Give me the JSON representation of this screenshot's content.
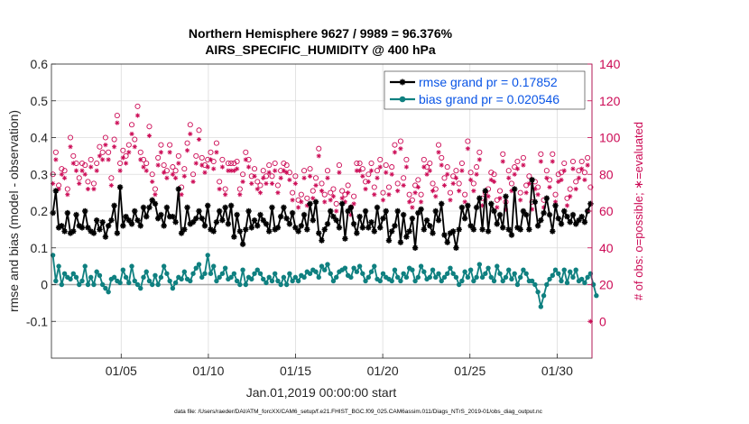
{
  "chart_data": {
    "type": "line",
    "title": [
      "Northern Hemisphere 9627 / 9989 = 96.376%",
      "AIRS_SPECIFIC_HUMIDITY @ 400 hPa"
    ],
    "xlabel": "Jan.01,2019 00:00:00 start",
    "ylabel_left": "rmse and bias (model - observation)",
    "ylabel_right": "# of obs: o=possible; ∗=evaluated",
    "x_ticks": [
      "01/05",
      "01/10",
      "01/15",
      "01/20",
      "01/25",
      "01/30"
    ],
    "x_tick_days": [
      5,
      10,
      15,
      20,
      25,
      30
    ],
    "xlim_days": [
      1,
      32
    ],
    "ylim_left": [
      -0.2,
      0.6
    ],
    "left_ticks": [
      "-0.1",
      "0",
      "0.1",
      "0.2",
      "0.3",
      "0.4",
      "0.5",
      "0.6"
    ],
    "left_tick_values": [
      -0.1,
      0,
      0.1,
      0.2,
      0.3,
      0.4,
      0.5,
      0.6
    ],
    "ylim_right": [
      -20,
      140
    ],
    "right_ticks": [
      "0",
      "20",
      "40",
      "60",
      "80",
      "100",
      "120",
      "140"
    ],
    "right_tick_values": [
      0,
      20,
      40,
      60,
      80,
      100,
      120,
      140
    ],
    "grid": true,
    "legend_position": "top-right",
    "zero_line": true,
    "series": [
      {
        "name": "rmse grand pr = 0.17852",
        "axis": "left",
        "color": "#000000",
        "marker": "asterisk",
        "values": [
          0.195,
          0.255,
          0.155,
          0.16,
          0.145,
          0.195,
          0.14,
          0.145,
          0.19,
          0.16,
          0.155,
          0.2,
          0.155,
          0.145,
          0.14,
          0.175,
          0.15,
          0.17,
          0.13,
          0.16,
          0.175,
          0.215,
          0.14,
          0.265,
          0.16,
          0.185,
          0.175,
          0.165,
          0.2,
          0.175,
          0.16,
          0.21,
          0.185,
          0.21,
          0.23,
          0.22,
          0.18,
          0.19,
          0.16,
          0.21,
          0.185,
          0.185,
          0.17,
          0.26,
          0.14,
          0.15,
          0.21,
          0.165,
          0.17,
          0.18,
          0.2,
          0.18,
          0.16,
          0.215,
          0.15,
          0.145,
          0.17,
          0.2,
          0.175,
          0.21,
          0.165,
          0.215,
          0.13,
          0.19,
          0.145,
          0.11,
          0.15,
          0.2,
          0.155,
          0.175,
          0.16,
          0.19,
          0.175,
          0.165,
          0.145,
          0.21,
          0.15,
          0.155,
          0.185,
          0.21,
          0.18,
          0.165,
          0.195,
          0.155,
          0.145,
          0.16,
          0.19,
          0.15,
          0.22,
          0.175,
          0.225,
          0.14,
          0.12,
          0.15,
          0.165,
          0.2,
          0.185,
          0.175,
          0.155,
          0.22,
          0.125,
          0.2,
          0.21,
          0.165,
          0.14,
          0.185,
          0.155,
          0.2,
          0.155,
          0.17,
          0.145,
          0.21,
          0.155,
          0.18,
          0.2,
          0.12,
          0.145,
          0.16,
          0.2,
          0.115,
          0.19,
          0.13,
          0.145,
          0.18,
          0.1,
          0.195,
          0.205,
          0.15,
          0.175,
          0.16,
          0.14,
          0.2,
          0.175,
          0.22,
          0.135,
          0.115,
          0.14,
          0.145,
          0.1,
          0.15,
          0.21,
          0.18,
          0.215,
          0.16,
          0.15,
          0.21,
          0.235,
          0.15,
          0.255,
          0.145,
          0.22,
          0.2,
          0.165,
          0.19,
          0.155,
          0.24,
          0.15,
          0.135,
          0.26,
          0.155,
          0.15,
          0.2,
          0.19,
          0.15,
          0.285,
          0.225,
          0.16,
          0.175,
          0.195,
          0.235,
          0.19,
          0.145,
          0.215,
          0.18,
          0.165,
          0.2,
          0.185,
          0.17,
          0.19,
          0.165,
          0.175,
          0.185,
          0.17,
          0.2,
          0.22
        ]
      },
      {
        "name": "bias grand pr = 0.020546",
        "axis": "left",
        "color": "#0f8080",
        "marker": "dot",
        "values": [
          0.08,
          0.01,
          0.05,
          0.0,
          0.03,
          0.02,
          0.015,
          0.03,
          0.02,
          0.0,
          0.01,
          0.05,
          0.0,
          0.02,
          0.0,
          0.035,
          0.025,
          0.0,
          -0.01,
          -0.02,
          0.015,
          0.02,
          0.01,
          0.005,
          0.04,
          0.02,
          0.005,
          0.05,
          0.01,
          0.0,
          -0.01,
          0.02,
          0.035,
          0.01,
          0.0,
          0.025,
          0.0,
          0.02,
          0.05,
          0.03,
          0.01,
          -0.01,
          0.005,
          0.02,
          0.015,
          0.035,
          0.015,
          0.01,
          0.03,
          0.045,
          0.055,
          0.02,
          0.03,
          0.08,
          0.03,
          0.05,
          0.01,
          0.02,
          0.03,
          0.045,
          0.015,
          0.02,
          0.03,
          0.01,
          0.0,
          0.04,
          0.0,
          0.02,
          0.015,
          0.03,
          0.04,
          0.03,
          0.015,
          0.005,
          0.02,
          0.01,
          0.03,
          0.01,
          0.0,
          0.02,
          0.0,
          0.03,
          0.01,
          0.02,
          0.01,
          0.025,
          0.02,
          0.035,
          0.03,
          0.04,
          0.035,
          0.02,
          0.05,
          0.04,
          0.055,
          0.03,
          0.01,
          0.02,
          0.035,
          0.04,
          0.045,
          0.025,
          0.02,
          0.045,
          0.035,
          0.05,
          0.03,
          0.01,
          0.02,
          0.035,
          0.05,
          0.015,
          0.01,
          0.03,
          0.02,
          0.015,
          0.01,
          0.04,
          0.02,
          0.01,
          0.03,
          0.02,
          0.045,
          0.04,
          0.01,
          0.02,
          0.05,
          0.035,
          0.015,
          0.02,
          0.04,
          0.02,
          0.03,
          0.01,
          0.02,
          0.03,
          0.045,
          0.03,
          0.02,
          0.0,
          0.01,
          0.035,
          0.02,
          0.04,
          0.01,
          0.02,
          0.055,
          0.02,
          0.03,
          0.045,
          0.02,
          0.01,
          0.05,
          0.03,
          0.01,
          0.02,
          0.04,
          0.015,
          0.03,
          0.0,
          0.02,
          0.04,
          0.03,
          0.01,
          0.01,
          0.0,
          -0.02,
          -0.06,
          -0.03,
          0.0,
          0.015,
          0.025,
          0.04,
          0.03,
          0.01,
          0.04,
          0.005,
          0.035,
          0.02,
          0.04,
          0.01,
          0.015,
          0.005,
          0.02,
          0.03,
          0.0,
          -0.03
        ]
      },
      {
        "name": "obs possible",
        "axis": "right",
        "color": "#cc0a55",
        "marker": "circle",
        "values": [
          80,
          92,
          74,
          83,
          82,
          72,
          100,
          90,
          86,
          78,
          86,
          85,
          76,
          88,
          75,
          86,
          95,
          92,
          100,
          92,
          78,
          99,
          112,
          86,
          93,
          90,
          96,
          107,
          99,
          117,
          92,
          88,
          86,
          106,
          80,
          72,
          89,
          96,
          85,
          82,
          96,
          84,
          82,
          90,
          73,
          83,
          97,
          107,
          80,
          90,
          104,
          89,
          85,
          88,
          92,
          87,
          97,
          76,
          88,
          72,
          86,
          86,
          86,
          87,
          72,
          80,
          92,
          88,
          79,
          83,
          76,
          74,
          82,
          79,
          85,
          79,
          86,
          74,
          82,
          86,
          85,
          81,
          70,
          79,
          66,
          69,
          82,
          67,
          83,
          71,
          78,
          94,
          75,
          69,
          82,
          70,
          72,
          64,
          85,
          71,
          69,
          74,
          62,
          68,
          86,
          86,
          83,
          76,
          80,
          86,
          73,
          82,
          88,
          70,
          85,
          73,
          84,
          96,
          75,
          98,
          78,
          88,
          69,
          66,
          74,
          77,
          69,
          88,
          84,
          86,
          75,
          72,
          96,
          89,
          78,
          84,
          70,
          79,
          82,
          75,
          86,
          69,
          98,
          81,
          75,
          84,
          92,
          67,
          70,
          72,
          81,
          80,
          66,
          71,
          91,
          65,
          82,
          75,
          84,
          87,
          70,
          89,
          74,
          79,
          65,
          76,
          73,
          91,
          66,
          82,
          77,
          91,
          69,
          80,
          81,
          86,
          67,
          72,
          87,
          76,
          82,
          87,
          81,
          89,
          73
        ]
      },
      {
        "name": "obs evaluated",
        "axis": "right",
        "color": "#cc0a55",
        "marker": "asterisk",
        "values": [
          75,
          88,
          72,
          80,
          78,
          69,
          95,
          86,
          82,
          75,
          82,
          80,
          72,
          84,
          72,
          82,
          90,
          88,
          96,
          88,
          74,
          95,
          108,
          82,
          89,
          86,
          92,
          102,
          95,
          112,
          88,
          84,
          82,
          101,
          76,
          69,
          85,
          92,
          81,
          78,
          92,
          80,
          78,
          86,
          69,
          79,
          93,
          102,
          76,
          86,
          99,
          85,
          81,
          84,
          88,
          83,
          92,
          72,
          84,
          69,
          82,
          82,
          82,
          83,
          69,
          76,
          88,
          84,
          75,
          79,
          72,
          70,
          78,
          75,
          81,
          75,
          82,
          70,
          78,
          82,
          81,
          77,
          66,
          75,
          62,
          65,
          78,
          63,
          79,
          67,
          74,
          90,
          71,
          65,
          78,
          66,
          68,
          60,
          81,
          67,
          65,
          70,
          58,
          64,
          82,
          82,
          79,
          72,
          76,
          82,
          69,
          78,
          84,
          66,
          81,
          69,
          80,
          92,
          71,
          94,
          74,
          84,
          65,
          62,
          70,
          73,
          65,
          84,
          80,
          82,
          71,
          68,
          92,
          85,
          74,
          80,
          66,
          75,
          78,
          71,
          82,
          65,
          94,
          77,
          71,
          80,
          88,
          63,
          66,
          68,
          77,
          76,
          62,
          67,
          87,
          61,
          78,
          71,
          80,
          83,
          66,
          85,
          70,
          75,
          61,
          72,
          69,
          87,
          62,
          78,
          73,
          87,
          65,
          76,
          77,
          82,
          63,
          68,
          83,
          72,
          78,
          83,
          77,
          85,
          0
        ]
      }
    ]
  },
  "footer": "data file: /Users/raeder/DAI/ATM_forcXX/CAM6_setup/f.e21.FHIST_BGC.f09_025.CAM6assim.011/Diags_NTrS_2019-01/obs_diag_output.nc"
}
